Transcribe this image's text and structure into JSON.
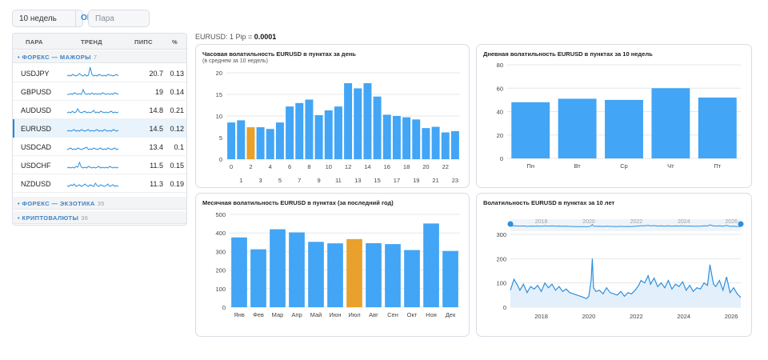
{
  "controls": {
    "weeks_value": "10 недель",
    "ok_label": "OK",
    "pair_placeholder": "Пара"
  },
  "table": {
    "headers": {
      "pair": "ПАРА",
      "trend": "ТРЕНД",
      "pips": "ПИПС",
      "pct": "%"
    },
    "groups": [
      {
        "label": "ФОРЕКС — МАЖОРЫ",
        "count": "7"
      },
      {
        "label": "ФОРЕКС — ЭКЗОТИКА",
        "count": "35"
      },
      {
        "label": "КРИПТОВАЛЮТЫ",
        "count": "36"
      }
    ],
    "rows": [
      {
        "symbol": "USDJPY",
        "pips": "20.7",
        "pct": "0.13"
      },
      {
        "symbol": "GBPUSD",
        "pips": "19",
        "pct": "0.14"
      },
      {
        "symbol": "AUDUSD",
        "pips": "14.8",
        "pct": "0.21"
      },
      {
        "symbol": "EURUSD",
        "pips": "14.5",
        "pct": "0.12",
        "selected": true
      },
      {
        "symbol": "USDCAD",
        "pips": "13.4",
        "pct": "0.1"
      },
      {
        "symbol": "USDCHF",
        "pips": "11.5",
        "pct": "0.15"
      },
      {
        "symbol": "NZDUSD",
        "pips": "11.3",
        "pct": "0.19"
      }
    ]
  },
  "pip_info": {
    "prefix": "EURUSD: 1 Pip = ",
    "value": "0.0001"
  },
  "colors": {
    "accent": "#1e8ae0",
    "bar": "#42a5f5",
    "highlight": "#e8a12c",
    "line": "#2e8fdc"
  },
  "chart_data": [
    {
      "type": "bar",
      "title": "Часовая волатильность EURUSD в пунктах за день",
      "subtitle": "(в среднем за 10 недель)",
      "categories": [
        "0",
        "1",
        "2",
        "3",
        "4",
        "5",
        "6",
        "7",
        "8",
        "9",
        "10",
        "11",
        "12",
        "13",
        "14",
        "15",
        "16",
        "17",
        "18",
        "19",
        "20",
        "21",
        "22",
        "23"
      ],
      "values": [
        8.5,
        9,
        7.4,
        7.4,
        7,
        8.5,
        12.2,
        13,
        13.8,
        10.2,
        11.3,
        12.2,
        17.6,
        16.4,
        17.6,
        14.5,
        10.3,
        10,
        9.7,
        9.2,
        7.2,
        7.5,
        6.2,
        6.5
      ],
      "highlight_index": 2,
      "ylim": [
        0,
        20
      ],
      "yticks": [
        0,
        5,
        10,
        15,
        20
      ]
    },
    {
      "type": "bar",
      "title": "Дневная волатильность EURUSD в пунктах за 10 недель",
      "categories": [
        "Пн",
        "Вт",
        "Ср",
        "Чт",
        "Пт"
      ],
      "values": [
        48,
        51,
        50,
        60,
        52
      ],
      "ylim": [
        0,
        80
      ],
      "yticks": [
        0,
        20,
        40,
        60,
        80
      ]
    },
    {
      "type": "bar",
      "title": "Месячная волатильность EURUSD в пунктах (за последний год)",
      "categories": [
        "Янв",
        "Фев",
        "Мар",
        "Апр",
        "Май",
        "Июн",
        "Июл",
        "Авг",
        "Сен",
        "Окт",
        "Ноя",
        "Дек"
      ],
      "values": [
        376,
        312,
        420,
        403,
        352,
        344,
        367,
        345,
        340,
        308,
        451,
        303
      ],
      "highlight_index": 6,
      "ylim": [
        0,
        500
      ],
      "yticks": [
        0,
        100,
        200,
        300,
        400,
        500
      ]
    },
    {
      "type": "line",
      "title": "Волатильность EURUSD в пунктах за 10 лет",
      "x_ticks": [
        "2018",
        "2020",
        "2022",
        "2024",
        "2026"
      ],
      "nav_ticks": [
        "2018",
        "2020",
        "2022",
        "2024",
        "2026"
      ],
      "ylim": [
        0,
        300
      ],
      "yticks": [
        0,
        100,
        200,
        300
      ],
      "x_range": [
        2016.7,
        2026.4
      ],
      "series": [
        {
          "x": [
            2016.7,
            2016.85,
            2017.0,
            2017.1,
            2017.25,
            2017.4,
            2017.55,
            2017.7,
            2017.85,
            2018.0,
            2018.15,
            2018.3,
            2018.45,
            2018.6,
            2018.75,
            2018.9,
            2019.05,
            2019.2,
            2019.35,
            2019.5,
            2019.65,
            2019.8,
            2019.9,
            2020.0,
            2020.1,
            2020.15,
            2020.2,
            2020.3,
            2020.45,
            2020.6,
            2020.75,
            2020.9,
            2021.05,
            2021.2,
            2021.35,
            2021.5,
            2021.65,
            2021.8,
            2021.95,
            2022.1,
            2022.2,
            2022.35,
            2022.5,
            2022.6,
            2022.75,
            2022.9,
            2023.05,
            2023.2,
            2023.35,
            2023.5,
            2023.65,
            2023.8,
            2023.95,
            2024.1,
            2024.25,
            2024.4,
            2024.55,
            2024.7,
            2024.85,
            2025.0,
            2025.1,
            2025.25,
            2025.35,
            2025.5,
            2025.65,
            2025.8,
            2025.95,
            2026.1,
            2026.25,
            2026.4
          ],
          "y": [
            70,
            115,
            90,
            70,
            95,
            60,
            85,
            75,
            90,
            65,
            100,
            80,
            95,
            70,
            85,
            65,
            75,
            60,
            55,
            50,
            45,
            40,
            35,
            45,
            110,
            200,
            80,
            65,
            70,
            55,
            80,
            60,
            55,
            50,
            65,
            45,
            60,
            55,
            70,
            90,
            110,
            100,
            130,
            95,
            120,
            85,
            100,
            80,
            110,
            75,
            95,
            85,
            105,
            70,
            90,
            65,
            80,
            75,
            100,
            90,
            175,
            95,
            85,
            110,
            70,
            125,
            60,
            80,
            55,
            40
          ]
        }
      ]
    }
  ]
}
